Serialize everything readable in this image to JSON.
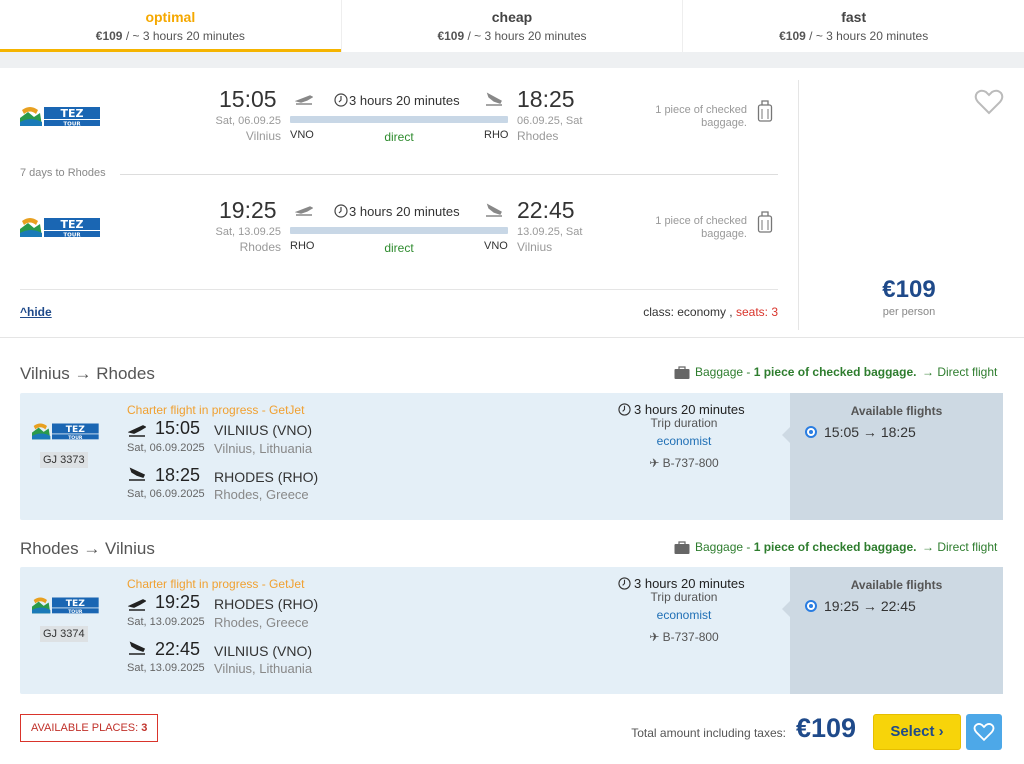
{
  "tabs": [
    {
      "title": "optimal",
      "price": "€109",
      "duration": " / ~ 3 hours 20 minutes"
    },
    {
      "title": "cheap",
      "price": "€109",
      "duration": " / ~ 3 hours 20 minutes"
    },
    {
      "title": "fast",
      "price": "€109",
      "duration": " / ~ 3 hours 20 minutes"
    }
  ],
  "summary": {
    "outbound": {
      "dep_time": "15:05",
      "dep_date": "Sat, 06.09.25",
      "dep_city": "Vilnius",
      "dep_code": "VNO",
      "duration": "3 hours 20 minutes",
      "type": "direct",
      "arr_time": "18:25",
      "arr_date": "06.09.25, Sat",
      "arr_city": "Rhodes",
      "arr_code": "RHO",
      "baggage_line1": "1 piece of checked",
      "baggage_line2": "baggage."
    },
    "stay": "7 days to Rhodes",
    "inbound": {
      "dep_time": "19:25",
      "dep_date": "Sat, 13.09.25",
      "dep_city": "Rhodes",
      "dep_code": "RHO",
      "duration": "3 hours 20 minutes",
      "type": "direct",
      "arr_time": "22:45",
      "arr_date": "13.09.25, Sat",
      "arr_city": "Vilnius",
      "arr_code": "VNO",
      "baggage_line1": "1 piece of checked",
      "baggage_line2": "baggage."
    },
    "hide_label": "hide",
    "class_label": "class: economy",
    "seats_label": "seats: 3",
    "price": "€109",
    "per_person": "per person"
  },
  "sections": [
    {
      "title": "Vilnius → Rhodes",
      "baggage_prefix": "Baggage - ",
      "baggage_bold": "1 piece of checked baggage.",
      "direct": "→ Direct flight",
      "flight_no": "GJ 3373",
      "charter": "Charter flight in progress - GetJet",
      "dep_time": "15:05",
      "dep_place": "VILNIUS (VNO)",
      "dep_date": "Sat, 06.09.2025",
      "dep_city": "Vilnius, Lithuania",
      "arr_time": "18:25",
      "arr_place": "RHODES (RHO)",
      "arr_date": "Sat, 06.09.2025",
      "arr_city": "Rhodes, Greece",
      "duration": "3 hours 20 minutes",
      "trip_label": "Trip duration",
      "class": "economist",
      "aircraft": "✈ B-737-800",
      "avail_title": "Available flights",
      "avail_option": "15:05 → 18:25"
    },
    {
      "title": "Rhodes → Vilnius",
      "baggage_prefix": "Baggage - ",
      "baggage_bold": "1 piece of checked baggage.",
      "direct": "→ Direct flight",
      "flight_no": "GJ 3374",
      "charter": "Charter flight in progress - GetJet",
      "dep_time": "19:25",
      "dep_place": "RHODES (RHO)",
      "dep_date": "Sat, 13.09.2025",
      "dep_city": "Rhodes, Greece",
      "arr_time": "22:45",
      "arr_place": "VILNIUS (VNO)",
      "arr_date": "Sat, 13.09.2025",
      "arr_city": "Vilnius, Lithuania",
      "duration": "3 hours 20 minutes",
      "trip_label": "Trip duration",
      "class": "economist",
      "aircraft": "✈ B-737-800",
      "avail_title": "Available flights",
      "avail_option": "19:25 → 22:45"
    }
  ],
  "footer": {
    "available_places_label": "AVAILABLE PLACES: ",
    "available_places_count": "3",
    "total_label": "Total amount including taxes:",
    "total_price": "€109",
    "select_label": "Select ›"
  },
  "icons": {
    "airline_logo": "tez-tour-logo",
    "heart": "heart-icon",
    "suitcase": "suitcase-icon",
    "clock": "clock-icon",
    "takeoff": "takeoff-icon",
    "landing": "landing-icon"
  },
  "colors": {
    "accent": "#f5b400",
    "price": "#1f4a8a",
    "direct_green": "#2e8b2e",
    "seats_red": "#d9342b",
    "charter_orange": "#f0a030",
    "select_yellow": "#f7d40a"
  }
}
